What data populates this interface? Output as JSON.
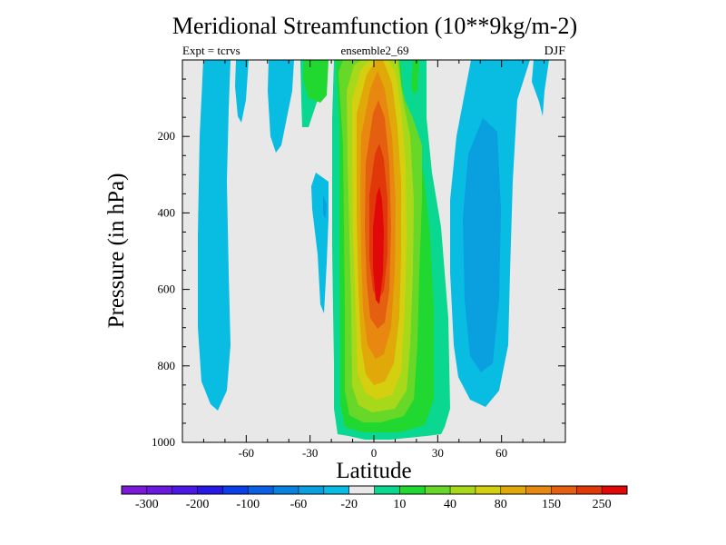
{
  "chart_data": {
    "type": "contour",
    "title": "Meridional Streamfunction (10**9kg/m-2)",
    "left_label": "Expt = tcrvs",
    "center_label": "ensemble2_69",
    "right_label": "DJF",
    "xlabel": "Latitude",
    "ylabel": "Pressure (in hPa)",
    "xlim": [
      -90,
      90
    ],
    "ylim": [
      1000,
      0
    ],
    "x_ticks": [
      -60,
      -30,
      0,
      30,
      60
    ],
    "y_ticks": [
      200,
      400,
      600,
      800,
      1000
    ],
    "colorbar": {
      "levels": [
        -300,
        -250,
        -200,
        -150,
        -100,
        -80,
        -60,
        -40,
        -20,
        -10,
        10,
        20,
        40,
        60,
        80,
        100,
        150,
        200,
        250,
        300
      ],
      "tick_labels": [
        "-300",
        "-200",
        "-100",
        "-60",
        "-20",
        "10",
        "40",
        "80",
        "150",
        "250"
      ],
      "colors": [
        "#7a1ad8",
        "#6a1ae0",
        "#4a18e6",
        "#2818e6",
        "#0a3ee8",
        "#0a60e4",
        "#0882e0",
        "#0aa0e0",
        "#08bce2",
        "#e8e8e8",
        "#0ad890",
        "#20d830",
        "#68d828",
        "#a8d81a",
        "#d4d010",
        "#e0a808",
        "#e88810",
        "#e46010",
        "#e03808",
        "#e00808"
      ]
    },
    "features": [
      {
        "name": "tropical-cell",
        "sign": "positive",
        "center_lat": 3,
        "center_pressure_hpa": 450,
        "peak_value": 300
      },
      {
        "name": "nh-ferrel-cell",
        "sign": "negative",
        "center_lat": 50,
        "center_pressure_hpa": 450,
        "peak_value": -60
      },
      {
        "name": "sh-ferrel-cell",
        "sign": "negative",
        "center_lat": -75,
        "center_pressure_hpa": 500,
        "peak_value": -20
      },
      {
        "name": "polar-cell-north",
        "sign": "negative",
        "center_lat": 77,
        "center_pressure_hpa": 60,
        "peak_value": -20
      }
    ]
  }
}
